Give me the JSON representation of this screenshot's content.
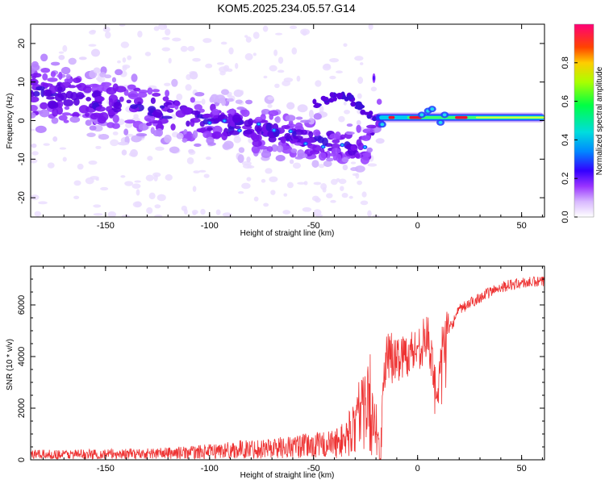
{
  "title": "KOM5.2025.234.05.57.G14",
  "chart_data": [
    {
      "type": "heatmap",
      "xlabel": "Height of straight line (km)",
      "ylabel": "Frequency (Hz)",
      "xlim": [
        -186,
        61
      ],
      "ylim": [
        -25,
        25
      ],
      "x_ticks": [
        "-150",
        "-100",
        "-50",
        "0",
        "50"
      ],
      "y_ticks": [
        "-20",
        "-10",
        "0",
        "10",
        "20"
      ],
      "colorbar": {
        "label": "Normalized spectral amplitude",
        "range": [
          0,
          1
        ],
        "ticks": [
          "0.0",
          "0.2",
          "0.4",
          "0.6",
          "0.8"
        ]
      },
      "trace": [
        {
          "x": -180,
          "y": 7
        },
        {
          "x": -160,
          "y": 5
        },
        {
          "x": -140,
          "y": 4
        },
        {
          "x": -120,
          "y": 2
        },
        {
          "x": -100,
          "y": 0
        },
        {
          "x": -80,
          "y": -2
        },
        {
          "x": -60,
          "y": -4
        },
        {
          "x": -40,
          "y": -6
        },
        {
          "x": -25,
          "y": -7
        },
        {
          "x": -20,
          "y": 0.5
        },
        {
          "x": 0,
          "y": 0.8
        },
        {
          "x": 20,
          "y": 0.8
        },
        {
          "x": 40,
          "y": 0.8
        },
        {
          "x": 60,
          "y": 0.8
        }
      ],
      "secondary_trace": [
        {
          "x": -50,
          "y": 4
        },
        {
          "x": -38,
          "y": 7
        },
        {
          "x": -30,
          "y": 5
        },
        {
          "x": -25,
          "y": 2
        },
        {
          "x": -20,
          "y": 0.5
        }
      ]
    },
    {
      "type": "line",
      "xlabel": "Height of straight line (km)",
      "ylabel": "SNR (10 * v/v)",
      "xlim": [
        -186,
        61
      ],
      "ylim": [
        0,
        7500
      ],
      "x_ticks": [
        "-150",
        "-100",
        "-50",
        "0",
        "50"
      ],
      "y_ticks": [
        "0",
        "2000",
        "4000",
        "6000"
      ],
      "series": [
        {
          "color": "#ee3333",
          "points": [
            [
              -186,
              200
            ],
            [
              -170,
              210
            ],
            [
              -150,
              220
            ],
            [
              -130,
              240
            ],
            [
              -110,
              280
            ],
            [
              -100,
              320
            ],
            [
              -90,
              380
            ],
            [
              -80,
              420
            ],
            [
              -70,
              460
            ],
            [
              -60,
              500
            ],
            [
              -50,
              560
            ],
            [
              -40,
              620
            ],
            [
              -35,
              800
            ],
            [
              -30,
              1300
            ],
            [
              -25,
              2200
            ],
            [
              -22,
              1500
            ],
            [
              -20,
              600
            ],
            [
              -18,
              400
            ],
            [
              -16,
              2500
            ],
            [
              -15,
              4200
            ],
            [
              -12,
              3800
            ],
            [
              -8,
              4000
            ],
            [
              -5,
              4100
            ],
            [
              0,
              4300
            ],
            [
              5,
              4800
            ],
            [
              8,
              3000
            ],
            [
              10,
              2500
            ],
            [
              12,
              4500
            ],
            [
              15,
              5000
            ],
            [
              20,
              5800
            ],
            [
              30,
              6300
            ],
            [
              40,
              6700
            ],
            [
              50,
              6850
            ],
            [
              61,
              6900
            ]
          ]
        }
      ]
    }
  ]
}
